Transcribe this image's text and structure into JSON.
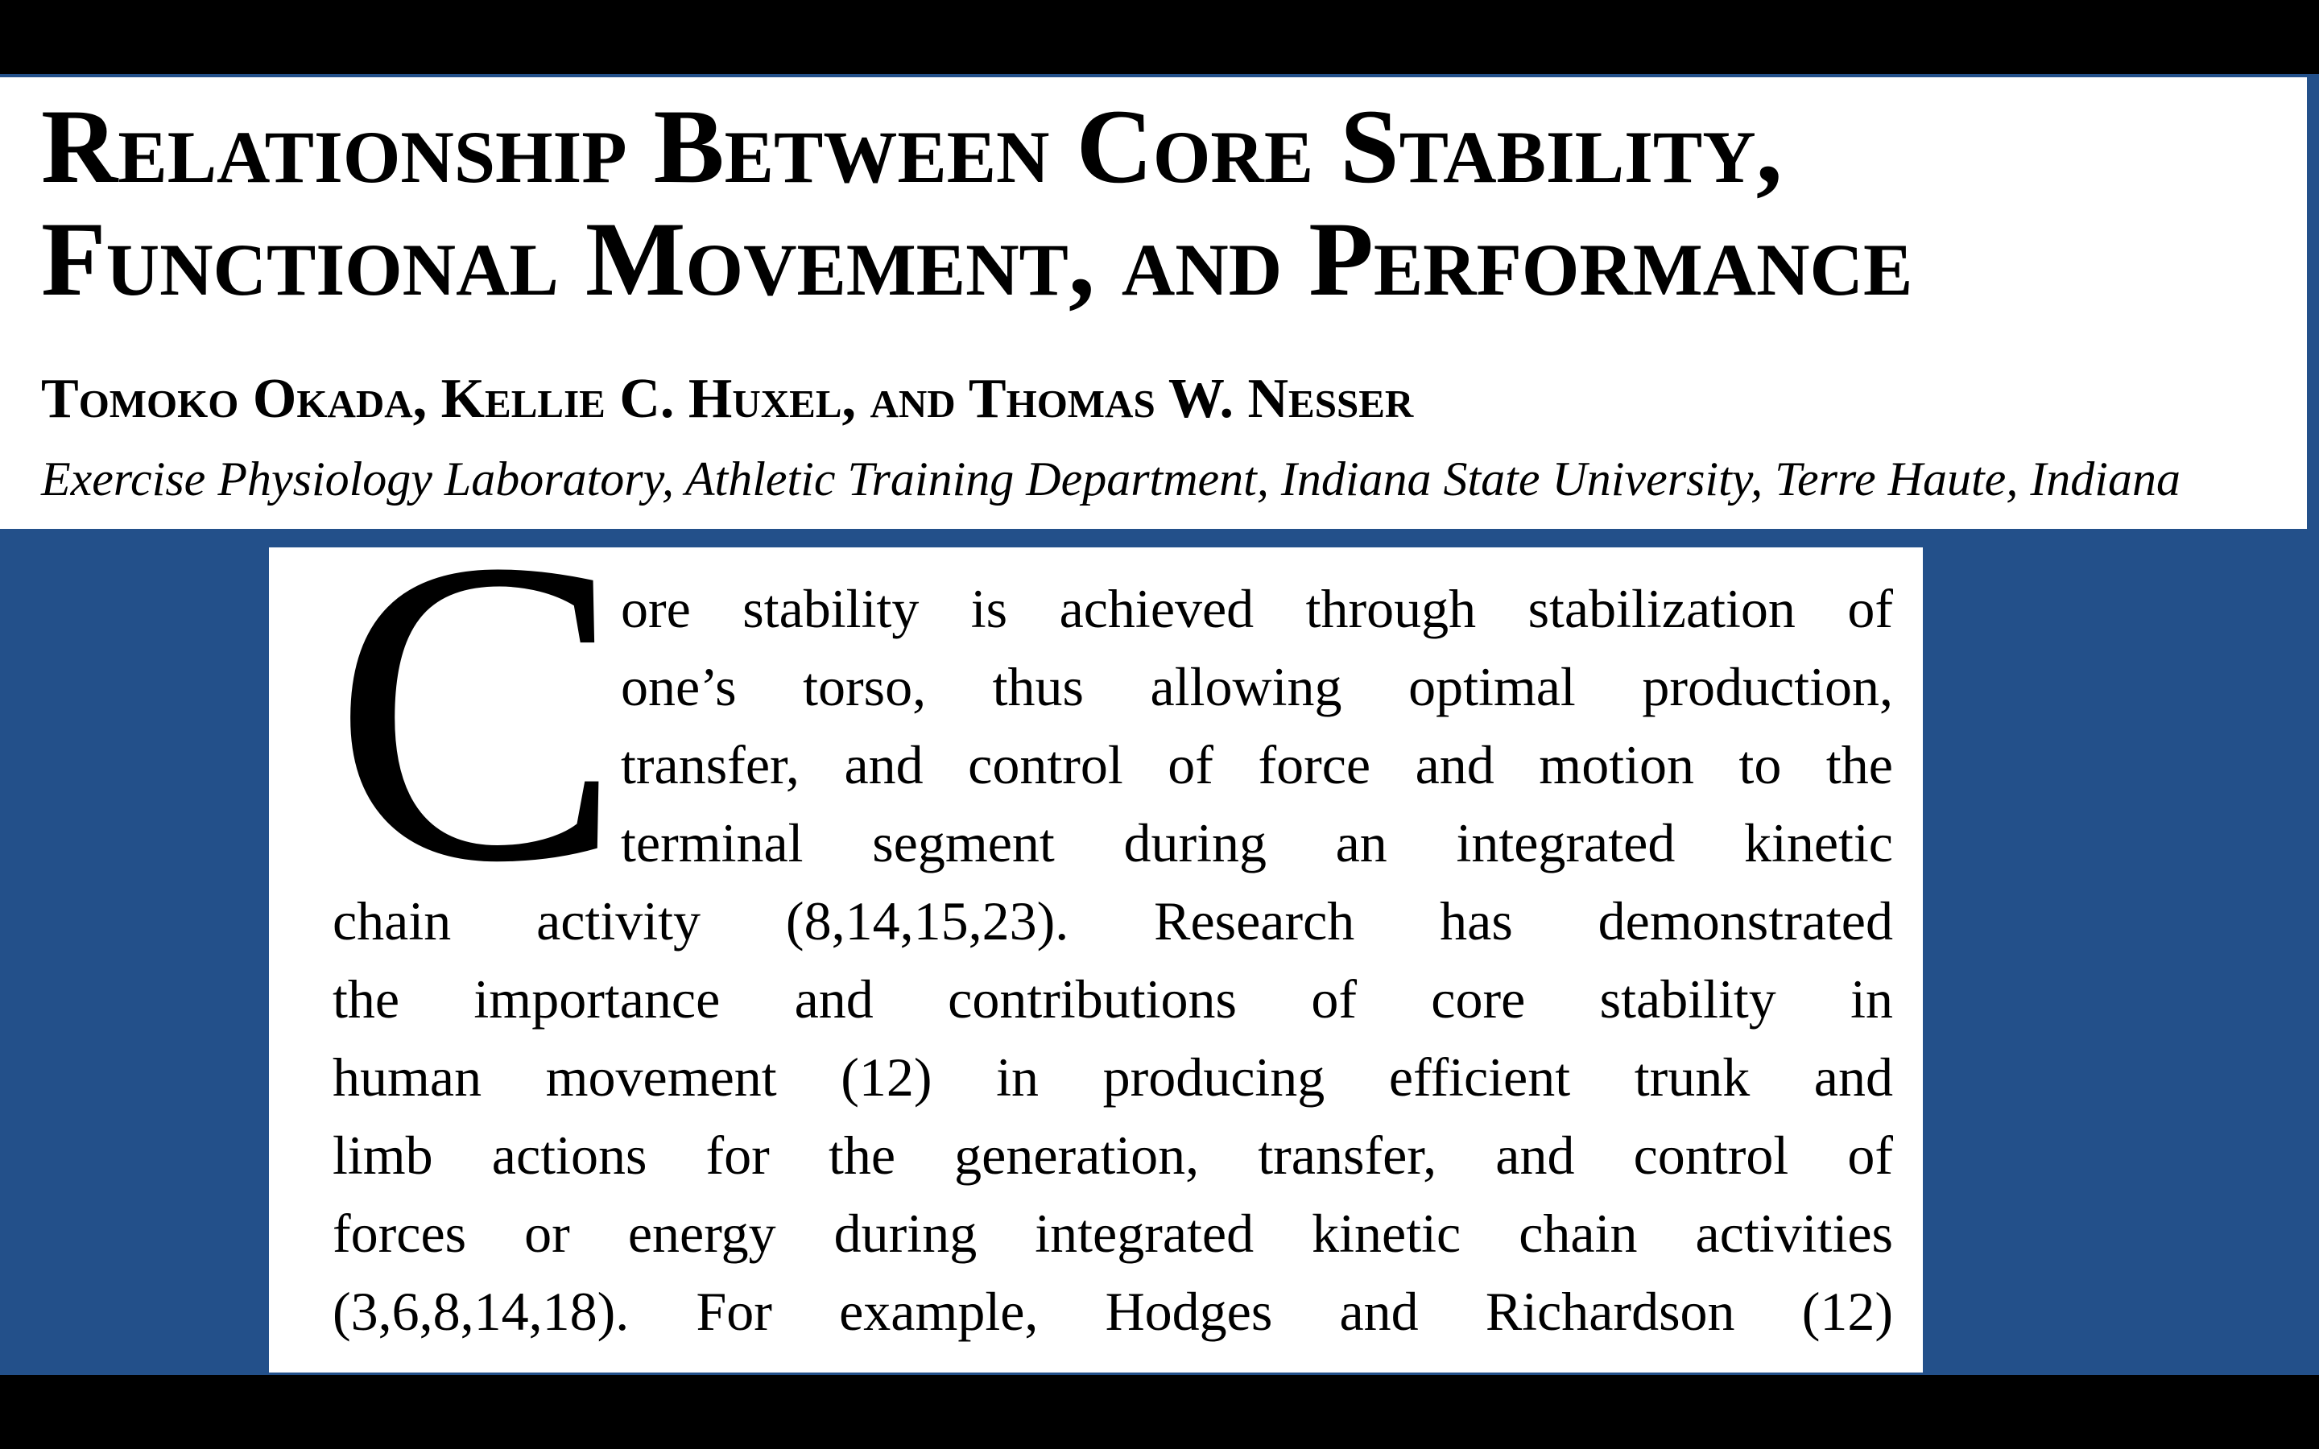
{
  "header": {
    "title_lines": [
      "Relationship Between Core Stability,",
      "Functional Movement, and Performance"
    ],
    "authors": "Tomoko Okada, Kellie C. Huxel, and Thomas W. Nesser",
    "affiliation": "Exercise Physiology Laboratory, Athletic Training Department, Indiana State University, Terre Haute, Indiana"
  },
  "body": {
    "drop_cap": "C",
    "lines": [
      "ore stability is achieved through stabilization of",
      "one’s torso, thus allowing optimal production,",
      "transfer, and control of force and motion to the",
      "terminal segment during an integrated kinetic",
      "chain activity (8,14,15,23). Research has demonstrated",
      "the importance and contributions of core stability in",
      "human movement (12) in producing efficient trunk and",
      "limb actions for the generation, transfer, and control of",
      "forces or energy during integrated kinetic chain activities",
      "(3,6,8,14,18). For example, Hodges and Richardson (12)"
    ]
  }
}
